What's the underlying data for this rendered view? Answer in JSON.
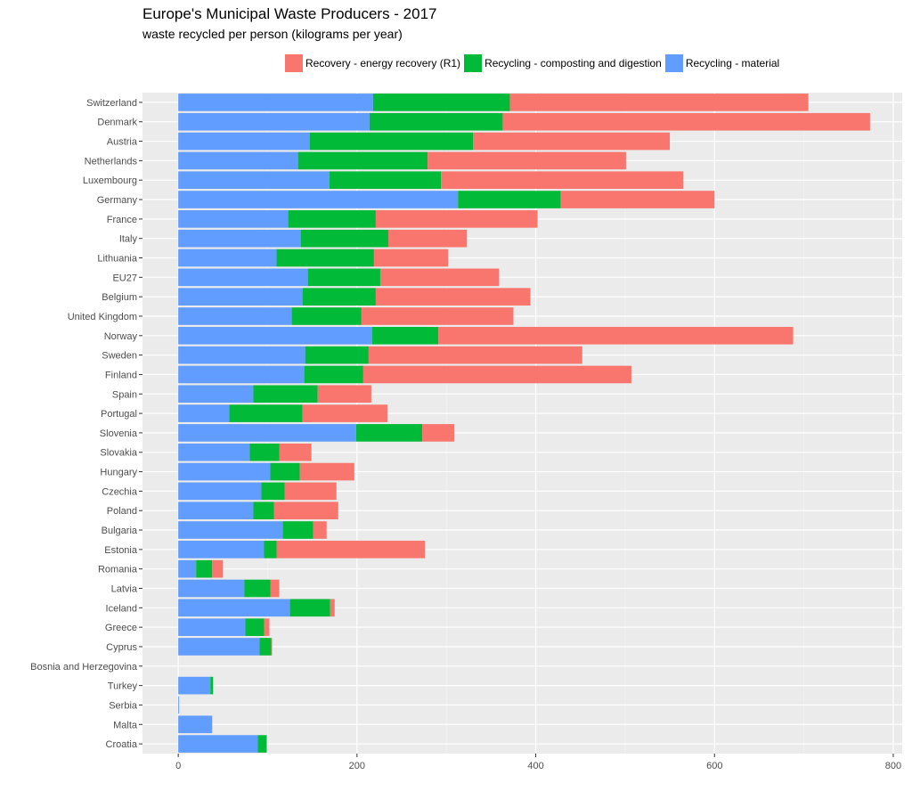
{
  "chart_data": {
    "type": "bar",
    "orientation": "horizontal",
    "stacked": true,
    "title": "Europe's Municipal Waste Producers - 2017",
    "subtitle": "waste recycled per person (kilograms per year)",
    "xlabel": "",
    "ylabel": "",
    "xlim": [
      -40,
      810
    ],
    "x_ticks": [
      0,
      200,
      400,
      600,
      800
    ],
    "grid": true,
    "legend_position": "top",
    "categories": [
      "Switzerland",
      "Denmark",
      "Austria",
      "Netherlands",
      "Luxembourg",
      "Germany",
      "France",
      "Italy",
      "Lithuania",
      "EU27",
      "Belgium",
      "United Kingdom",
      "Norway",
      "Sweden",
      "Finland",
      "Spain",
      "Portugal",
      "Slovenia",
      "Slovakia",
      "Hungary",
      "Czechia",
      "Poland",
      "Bulgaria",
      "Estonia",
      "Romania",
      "Latvia",
      "Iceland",
      "Greece",
      "Cyprus",
      "Bosnia and Herzegovina",
      "Turkey",
      "Serbia",
      "Malta",
      "Croatia"
    ],
    "series": [
      {
        "name": "Recycling - material",
        "color": "#619CFF",
        "values": [
          218,
          214,
          147,
          134,
          169,
          313,
          123,
          137,
          110,
          145,
          139,
          127,
          217,
          142,
          141,
          84,
          57,
          199,
          80,
          103,
          93,
          84,
          117,
          96,
          20,
          74,
          125,
          75,
          91,
          0,
          36,
          1,
          38,
          89
        ]
      },
      {
        "name": "Recycling - composting and digestion",
        "color": "#00BA38",
        "values": [
          153,
          149,
          183,
          145,
          125,
          115,
          98,
          98,
          109,
          81,
          82,
          78,
          74,
          71,
          66,
          72,
          82,
          74,
          33,
          33,
          26,
          23,
          34,
          14,
          18,
          29,
          45,
          21,
          13,
          0,
          3,
          0,
          0,
          10
        ]
      },
      {
        "name": "Recovery - energy recovery (R1)",
        "color": "#F8766D",
        "values": [
          334,
          411,
          220,
          222,
          271,
          172,
          181,
          88,
          83,
          133,
          173,
          170,
          397,
          239,
          300,
          60,
          95,
          36,
          36,
          61,
          58,
          72,
          15,
          166,
          12,
          10,
          5,
          6,
          1,
          0,
          0,
          0,
          0,
          0
        ]
      }
    ],
    "legend_order": [
      "Recovery - energy recovery (R1)",
      "Recycling - composting and digestion",
      "Recycling - material"
    ]
  }
}
